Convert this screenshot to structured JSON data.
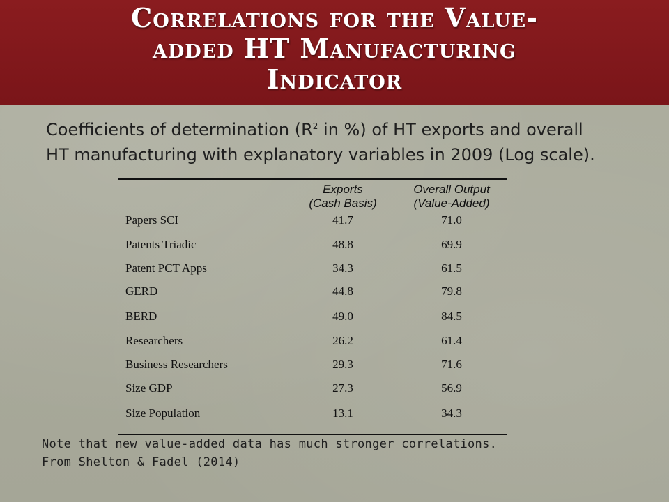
{
  "slide": {
    "title_line1": "Correlations for the Value-",
    "title_line2": "added HT Manufacturing",
    "title_line3": "Indicator",
    "subtitle_pre": "Coefficients of determination (R",
    "subtitle_sup": "2",
    "subtitle_post1": " in %) of HT exports and overall",
    "subtitle_line2": "HT manufacturing with explanatory variables in 2009 (Log scale).",
    "note_line1": "Note that new value-added data has much stronger correlations.",
    "note_line2": "From Shelton & Fadel (2014)"
  },
  "table": {
    "col1_line1": "Exports",
    "col1_line2": "(Cash Basis)",
    "col2_line1": "Overall Output",
    "col2_line2": "(Value-Added)",
    "rows": [
      {
        "label": "Papers SCI",
        "exports": "41.7",
        "overall": "71.0"
      },
      {
        "label": "Patents Triadic",
        "exports": "48.8",
        "overall": "69.9"
      },
      {
        "label": "Patent PCT Apps",
        "exports": "34.3",
        "overall": "61.5"
      },
      {
        "label": "GERD",
        "exports": "44.8",
        "overall": "79.8"
      },
      {
        "label": "BERD",
        "exports": "49.0",
        "overall": "84.5"
      },
      {
        "label": "Researchers",
        "exports": "26.2",
        "overall": "61.4"
      },
      {
        "label": "Business Researchers",
        "exports": "29.3",
        "overall": "71.6"
      },
      {
        "label": "Size GDP",
        "exports": "27.3",
        "overall": "56.9"
      },
      {
        "label": "Size Population",
        "exports": "13.1",
        "overall": "34.3"
      }
    ]
  },
  "colors": {
    "title_bar": "#8a1c1f",
    "background": "#a8a99a",
    "title_text": "#ffffff"
  }
}
